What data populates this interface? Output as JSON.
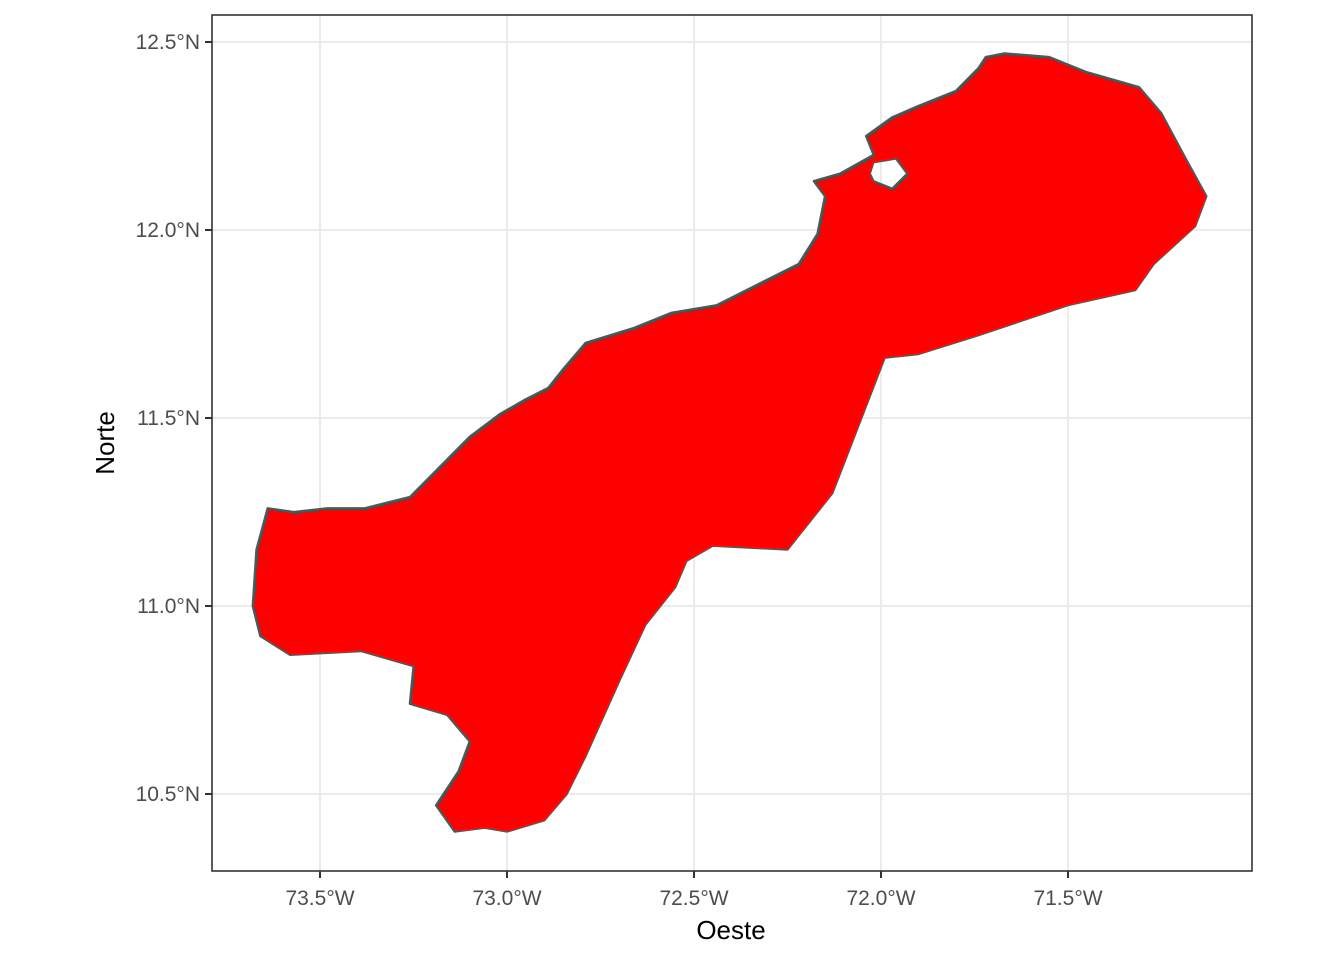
{
  "map": {
    "x_axis_title": "Oeste",
    "y_axis_title": "Norte",
    "x_ticks": [
      {
        "value": -73.5,
        "label": "73.5°W"
      },
      {
        "value": -73.0,
        "label": "73.0°W"
      },
      {
        "value": -72.5,
        "label": "72.5°W"
      },
      {
        "value": -72.0,
        "label": "72.0°W"
      },
      {
        "value": -71.5,
        "label": "71.5°W"
      }
    ],
    "y_ticks": [
      {
        "value": 12.5,
        "label": "12.5°N"
      },
      {
        "value": 12.0,
        "label": "12.0°N"
      },
      {
        "value": 11.5,
        "label": "11.5°N"
      },
      {
        "value": 11.0,
        "label": "11.0°N"
      },
      {
        "value": 10.5,
        "label": "10.5°N"
      }
    ],
    "region": {
      "fill_color": "#ff0000",
      "border_color": "#555555",
      "outline_lon_lat": [
        [
          -73.64,
          11.26
        ],
        [
          -73.57,
          11.25
        ],
        [
          -73.48,
          11.26
        ],
        [
          -73.38,
          11.26
        ],
        [
          -73.26,
          11.29
        ],
        [
          -73.18,
          11.37
        ],
        [
          -73.1,
          11.45
        ],
        [
          -73.02,
          11.51
        ],
        [
          -72.95,
          11.55
        ],
        [
          -72.89,
          11.58
        ],
        [
          -72.85,
          11.63
        ],
        [
          -72.79,
          11.7
        ],
        [
          -72.66,
          11.74
        ],
        [
          -72.56,
          11.78
        ],
        [
          -72.44,
          11.8
        ],
        [
          -72.32,
          11.86
        ],
        [
          -72.22,
          11.91
        ],
        [
          -72.17,
          11.99
        ],
        [
          -72.15,
          12.09
        ],
        [
          -72.18,
          12.13
        ],
        [
          -72.11,
          12.15
        ],
        [
          -72.02,
          12.2
        ],
        [
          -72.04,
          12.25
        ],
        [
          -71.97,
          12.3
        ],
        [
          -71.9,
          12.33
        ],
        [
          -71.8,
          12.37
        ],
        [
          -71.74,
          12.43
        ],
        [
          -71.72,
          12.46
        ],
        [
          -71.67,
          12.47
        ],
        [
          -71.55,
          12.46
        ],
        [
          -71.45,
          12.42
        ],
        [
          -71.31,
          12.38
        ],
        [
          -71.25,
          12.31
        ],
        [
          -71.18,
          12.18
        ],
        [
          -71.13,
          12.09
        ],
        [
          -71.16,
          12.01
        ],
        [
          -71.27,
          11.91
        ],
        [
          -71.32,
          11.84
        ],
        [
          -71.5,
          11.8
        ],
        [
          -71.74,
          11.72
        ],
        [
          -71.9,
          11.67
        ],
        [
          -71.99,
          11.66
        ],
        [
          -72.13,
          11.3
        ],
        [
          -72.25,
          11.15
        ],
        [
          -72.45,
          11.16
        ],
        [
          -72.52,
          11.12
        ],
        [
          -72.55,
          11.05
        ],
        [
          -72.63,
          10.95
        ],
        [
          -72.7,
          10.8
        ],
        [
          -72.79,
          10.6
        ],
        [
          -72.84,
          10.5
        ],
        [
          -72.9,
          10.43
        ],
        [
          -73.0,
          10.4
        ],
        [
          -73.06,
          10.41
        ],
        [
          -73.14,
          10.4
        ],
        [
          -73.19,
          10.47
        ],
        [
          -73.13,
          10.56
        ],
        [
          -73.1,
          10.64
        ],
        [
          -73.16,
          10.71
        ],
        [
          -73.26,
          10.74
        ],
        [
          -73.25,
          10.84
        ],
        [
          -73.39,
          10.88
        ],
        [
          -73.58,
          10.87
        ],
        [
          -73.66,
          10.92
        ],
        [
          -73.68,
          11.0
        ],
        [
          -73.67,
          11.15
        ],
        [
          -73.64,
          11.26
        ]
      ],
      "lagoon_lon_lat": [
        [
          -72.02,
          12.13
        ],
        [
          -71.97,
          12.11
        ],
        [
          -71.93,
          12.15
        ],
        [
          -71.96,
          12.19
        ],
        [
          -72.02,
          12.18
        ],
        [
          -72.03,
          12.15
        ],
        [
          -72.02,
          12.13
        ]
      ]
    }
  }
}
